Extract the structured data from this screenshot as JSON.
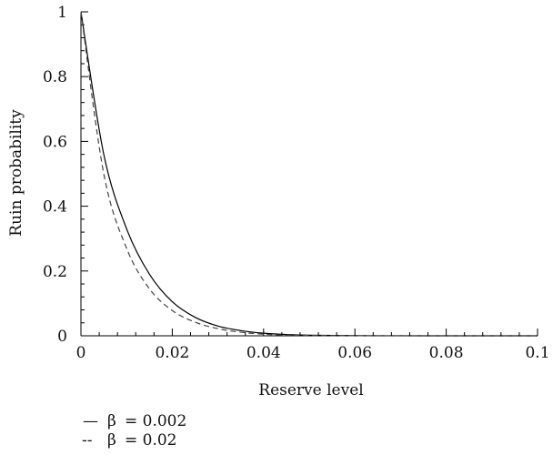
{
  "chart_data": {
    "type": "line",
    "title": "",
    "xlabel": "Reserve level",
    "ylabel": "Ruin probability",
    "xlim": [
      0,
      0.1
    ],
    "ylim": [
      0,
      1
    ],
    "x_ticks": [
      0,
      0.02,
      0.04,
      0.06,
      0.08,
      0.1
    ],
    "x_tick_labels": [
      "0",
      "0.02",
      "0.04",
      "0.06",
      "0.08",
      "0.1"
    ],
    "y_ticks": [
      0,
      0.2,
      0.4,
      0.6,
      0.8,
      1
    ],
    "y_tick_labels": [
      "0",
      "0.2",
      "0.4",
      "0.6",
      "0.8",
      "1"
    ],
    "grid": false,
    "legend_position": "bottom-left",
    "series": [
      {
        "name": "β = 0.002",
        "legend_symbol": "—",
        "legend_greek": "β",
        "legend_value": "= 0.002",
        "style": "solid",
        "color": "#000000",
        "x": [
          0,
          0.005,
          0.01,
          0.015,
          0.02,
          0.025,
          0.03,
          0.035,
          0.04,
          0.045,
          0.05,
          0.055,
          0.06,
          0.07,
          0.08,
          0.09,
          0.1
        ],
        "y": [
          1,
          0.56,
          0.33,
          0.19,
          0.105,
          0.057,
          0.03,
          0.016,
          0.008,
          0.004,
          0.002,
          0.001,
          0.0005,
          0.0001,
          0,
          0,
          0
        ]
      },
      {
        "name": "β = 0.02",
        "legend_symbol": "--",
        "legend_greek": "β",
        "legend_value": "= 0.02",
        "style": "dashed",
        "color": "#444444",
        "x": [
          0,
          0.005,
          0.01,
          0.015,
          0.02,
          0.025,
          0.03,
          0.035,
          0.04,
          0.045,
          0.05,
          0.055,
          0.06,
          0.07,
          0.08,
          0.09,
          0.1
        ],
        "y": [
          1,
          0.5,
          0.27,
          0.145,
          0.078,
          0.042,
          0.022,
          0.011,
          0.005,
          0.002,
          0.001,
          0.0005,
          0.0002,
          0,
          0,
          0,
          0
        ]
      }
    ]
  }
}
